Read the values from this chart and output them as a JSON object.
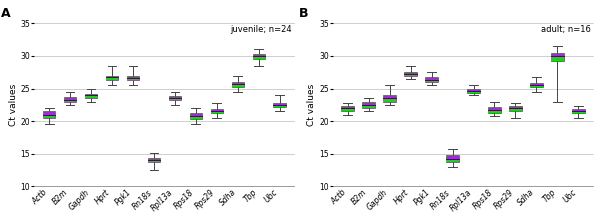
{
  "genes": [
    "Actb",
    "B2m",
    "Gapdh",
    "Hprt",
    "Pgk1",
    "Rn18s",
    "Rpl13a",
    "Rps18",
    "Rps29",
    "Sdha",
    "Tbp",
    "Ubc"
  ],
  "panel_A": {
    "label": "juvenile; n=24",
    "boxes": [
      {
        "whisker_low": 19.5,
        "q1": 20.5,
        "median": 21.0,
        "q3": 21.5,
        "whisker_high": 22.0
      },
      {
        "whisker_low": 22.5,
        "q1": 23.0,
        "median": 23.3,
        "q3": 23.7,
        "whisker_high": 24.5
      },
      {
        "whisker_low": 23.0,
        "q1": 23.5,
        "median": 24.0,
        "q3": 24.2,
        "whisker_high": 25.0
      },
      {
        "whisker_low": 25.5,
        "q1": 26.3,
        "median": 26.7,
        "q3": 27.0,
        "whisker_high": 28.5
      },
      {
        "whisker_low": 25.5,
        "q1": 26.3,
        "median": 26.6,
        "q3": 27.0,
        "whisker_high": 28.5
      },
      {
        "whisker_low": 12.5,
        "q1": 13.7,
        "median": 14.0,
        "q3": 14.3,
        "whisker_high": 15.2
      },
      {
        "whisker_low": 22.5,
        "q1": 23.2,
        "median": 23.5,
        "q3": 23.8,
        "whisker_high": 24.5
      },
      {
        "whisker_low": 19.5,
        "q1": 20.4,
        "median": 20.8,
        "q3": 21.2,
        "whisker_high": 22.0
      },
      {
        "whisker_low": 20.5,
        "q1": 21.2,
        "median": 21.5,
        "q3": 21.8,
        "whisker_high": 22.8
      },
      {
        "whisker_low": 24.5,
        "q1": 25.3,
        "median": 25.7,
        "q3": 26.0,
        "whisker_high": 27.0
      },
      {
        "whisker_low": 28.5,
        "q1": 29.5,
        "median": 30.0,
        "q3": 30.3,
        "whisker_high": 31.0
      },
      {
        "whisker_low": 21.5,
        "q1": 22.2,
        "median": 22.5,
        "q3": 22.8,
        "whisker_high": 24.0
      }
    ]
  },
  "panel_B": {
    "label": "adult; n=16",
    "boxes": [
      {
        "whisker_low": 21.0,
        "q1": 21.5,
        "median": 22.0,
        "q3": 22.3,
        "whisker_high": 22.8
      },
      {
        "whisker_low": 21.5,
        "q1": 22.0,
        "median": 22.5,
        "q3": 23.0,
        "whisker_high": 23.5
      },
      {
        "whisker_low": 22.5,
        "q1": 23.0,
        "median": 23.5,
        "q3": 24.0,
        "whisker_high": 25.5
      },
      {
        "whisker_low": 26.5,
        "q1": 27.0,
        "median": 27.3,
        "q3": 27.5,
        "whisker_high": 28.5
      },
      {
        "whisker_low": 25.5,
        "q1": 26.0,
        "median": 26.3,
        "q3": 26.7,
        "whisker_high": 27.5
      },
      {
        "whisker_low": 13.0,
        "q1": 13.8,
        "median": 14.2,
        "q3": 14.8,
        "whisker_high": 15.8
      },
      {
        "whisker_low": 24.0,
        "q1": 24.3,
        "median": 24.7,
        "q3": 25.0,
        "whisker_high": 25.5
      },
      {
        "whisker_low": 20.8,
        "q1": 21.3,
        "median": 21.7,
        "q3": 22.2,
        "whisker_high": 23.0
      },
      {
        "whisker_low": 20.5,
        "q1": 21.5,
        "median": 22.0,
        "q3": 22.3,
        "whisker_high": 22.8
      },
      {
        "whisker_low": 24.5,
        "q1": 25.2,
        "median": 25.5,
        "q3": 25.8,
        "whisker_high": 26.8
      },
      {
        "whisker_low": 23.0,
        "q1": 29.3,
        "median": 30.0,
        "q3": 30.5,
        "whisker_high": 31.5
      },
      {
        "whisker_low": 20.5,
        "q1": 21.2,
        "median": 21.5,
        "q3": 21.8,
        "whisker_high": 22.3
      }
    ]
  },
  "box_color_purple": "#9b30d0",
  "box_color_green": "#22cc22",
  "whisker_color": "#444444",
  "box_edge_color": "#555555",
  "ylabel": "Ct values",
  "ylim": [
    10,
    35
  ],
  "yticks": [
    10,
    15,
    20,
    25,
    30,
    35
  ],
  "bg_color": "#ffffff",
  "grid_color": "#bbbbbb",
  "label_fontsize": 6.5,
  "tick_fontsize": 5.5,
  "panel_label_fontsize": 9,
  "annot_fontsize": 6
}
